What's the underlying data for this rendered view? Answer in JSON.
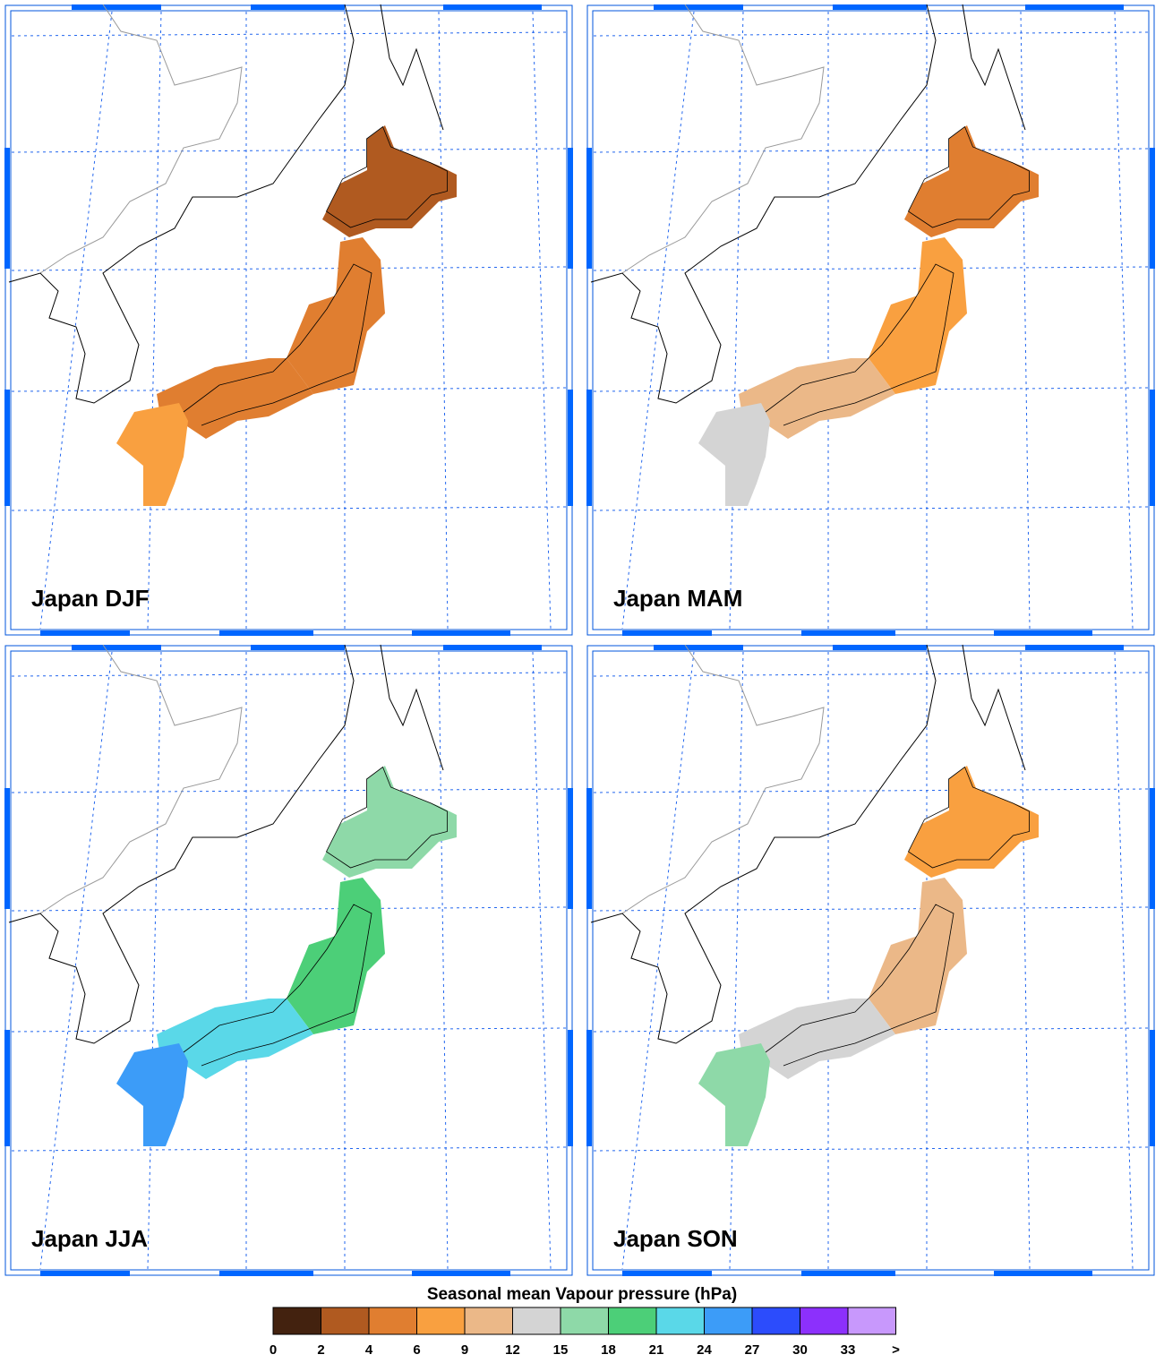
{
  "panels": [
    {
      "title": "Japan DJF"
    },
    {
      "title": "Japan MAM"
    },
    {
      "title": "Japan JJA"
    },
    {
      "title": "Japan SON"
    }
  ],
  "colorbar": {
    "title": "Seasonal mean Vapour pressure (hPa)",
    "levels": [
      0,
      2,
      4,
      6,
      9,
      12,
      15,
      18,
      21,
      24,
      27,
      30,
      33
    ],
    "end_label": ">",
    "colors": [
      "#43220f",
      "#b05a20",
      "#e07e30",
      "#f9a040",
      "#ebb888",
      "#d4d4d4",
      "#8ed9a8",
      "#4ccf78",
      "#5ad8e8",
      "#3c9cf8",
      "#2c4cfc",
      "#8c30fc",
      "#c898fc"
    ]
  }
}
